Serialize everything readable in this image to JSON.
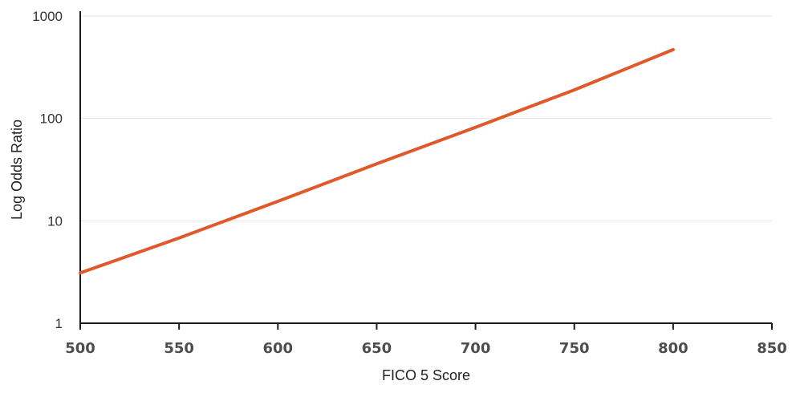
{
  "chart_data": {
    "type": "line",
    "xlabel": "FICO 5 Score",
    "ylabel": "Log Odds Ratio",
    "title": "",
    "xlim": [
      500,
      850
    ],
    "ylim": [
      1,
      1000
    ],
    "yscale": "log",
    "x_ticks": [
      "500",
      "550",
      "600",
      "650",
      "700",
      "750",
      "800",
      "850"
    ],
    "y_ticks": [
      "1",
      "10",
      "100",
      "1000"
    ],
    "grid": "horizontal",
    "series": [
      {
        "color": "#e0592a",
        "x": [
          500,
          550,
          600,
          650,
          700,
          750,
          800
        ],
        "y": [
          3.1,
          6.8,
          15.5,
          36,
          82,
          190,
          470
        ]
      }
    ]
  }
}
